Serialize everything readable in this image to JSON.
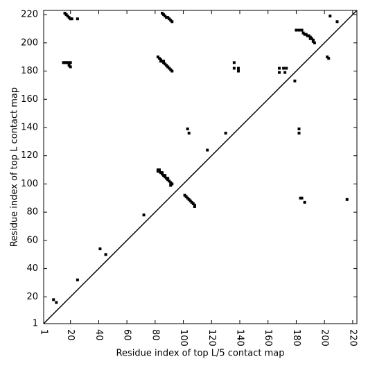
{
  "chart_data": {
    "type": "scatter",
    "xlabel": "Residue index of top L/5 contact map",
    "ylabel": "Residue index of top L contact map",
    "xlim": [
      1,
      223
    ],
    "ylim": [
      1,
      223
    ],
    "xticks": [
      1,
      20,
      40,
      60,
      80,
      100,
      120,
      140,
      160,
      180,
      200,
      220
    ],
    "yticks": [
      1,
      20,
      40,
      60,
      80,
      100,
      120,
      140,
      160,
      180,
      200,
      220
    ],
    "diagonal": true,
    "series": [
      {
        "color": "#000000",
        "x": [
          16,
          17,
          18,
          19,
          20,
          21,
          25,
          85,
          86,
          87,
          88,
          89,
          90,
          91,
          92,
          15,
          16,
          17,
          18,
          19,
          20,
          19,
          20,
          82,
          83,
          84,
          85,
          86,
          87,
          88,
          89,
          90,
          91,
          92,
          84,
          86,
          82,
          83,
          84,
          85,
          86,
          87,
          88,
          89,
          90,
          91,
          92,
          91,
          82,
          83,
          85,
          87,
          89,
          101,
          102,
          103,
          104,
          105,
          106,
          107,
          108,
          108,
          72,
          41,
          45,
          25,
          8,
          10,
          103,
          104,
          130,
          117,
          136,
          136,
          139,
          139,
          168,
          168,
          171,
          172,
          173,
          179,
          182,
          182,
          180,
          182,
          184,
          185,
          186,
          187,
          188,
          189,
          190,
          191,
          192,
          192,
          193,
          190,
          202,
          203,
          204,
          209,
          183,
          184,
          186,
          216
        ],
        "y": [
          221,
          220,
          219,
          218,
          217,
          217,
          217,
          221,
          220,
          219,
          218,
          218,
          217,
          216,
          215,
          186,
          186,
          186,
          186,
          186,
          186,
          184,
          183,
          190,
          189,
          188,
          187,
          186,
          185,
          184,
          183,
          182,
          181,
          180,
          187,
          187,
          110,
          109,
          108,
          107,
          106,
          105,
          104,
          103,
          102,
          101,
          100,
          99,
          109,
          110,
          108,
          106,
          104,
          92,
          91,
          90,
          89,
          88,
          87,
          86,
          85,
          84,
          78,
          54,
          50,
          32,
          18,
          16,
          139,
          136,
          136,
          124,
          186,
          182,
          182,
          180,
          182,
          179,
          182,
          179,
          182,
          173,
          139,
          136,
          209,
          209,
          209,
          207,
          206,
          206,
          205,
          205,
          204,
          203,
          202,
          201,
          200,
          203,
          190,
          189,
          219,
          215,
          90,
          90,
          87,
          89
        ]
      }
    ]
  }
}
